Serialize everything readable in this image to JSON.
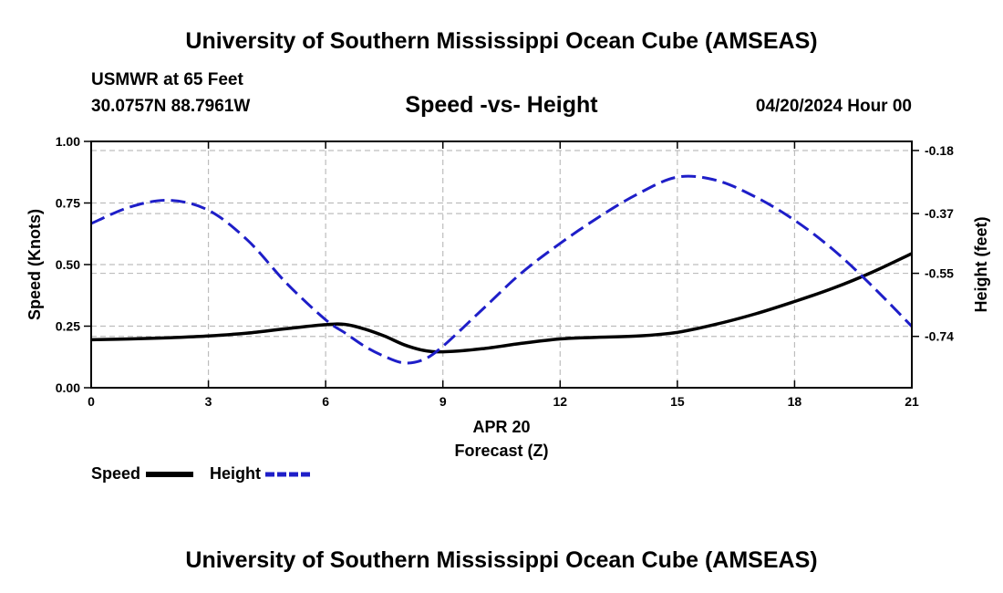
{
  "header": {
    "title": "University of Southern Mississippi Ocean Cube (AMSEAS)",
    "station": "USMWR at 65 Feet",
    "coords": "30.0757N  88.7961W",
    "subtitle": "Speed -vs- Height",
    "datetime": "04/20/2024 Hour 00"
  },
  "footer": {
    "title": "University of Southern Mississippi Ocean Cube (AMSEAS)"
  },
  "chart_data": {
    "type": "line",
    "title": "Speed -vs- Height",
    "xlabel": "Forecast (Z)",
    "xsublabel": "APR 20",
    "ylabel": "Speed (Knots)",
    "y2label": "Height (feet)",
    "xlim": [
      0,
      21
    ],
    "ylim": [
      0,
      1
    ],
    "y2lim": [
      -0.8947,
      -0.1526
    ],
    "xticks": [
      "0",
      "3",
      "6",
      "9",
      "12",
      "15",
      "18",
      "21"
    ],
    "xtick_values": [
      0,
      3,
      6,
      9,
      12,
      15,
      18,
      21
    ],
    "yticks": [
      "0.00",
      "0.25",
      "0.50",
      "0.75",
      "1.00"
    ],
    "ytick_values": [
      0,
      0.25,
      0.5,
      0.75,
      1.0
    ],
    "y2ticks": [
      "-0.18",
      "-0.37",
      "-0.55",
      "-0.74"
    ],
    "y2tick_values": [
      -0.18,
      -0.37,
      -0.55,
      -0.74
    ],
    "grid": true,
    "x": [
      0,
      1,
      2,
      3,
      4,
      5,
      6,
      6.5,
      7,
      7.5,
      8,
      8.5,
      9,
      10,
      11,
      12,
      13,
      14,
      15,
      16,
      17,
      18,
      19,
      20,
      21
    ],
    "series": [
      {
        "name": "Speed",
        "axis": "left",
        "color": "#000000",
        "style": "solid",
        "values": [
          0.195,
          0.198,
          0.203,
          0.21,
          0.222,
          0.24,
          0.256,
          0.257,
          0.238,
          0.21,
          0.175,
          0.152,
          0.146,
          0.158,
          0.18,
          0.198,
          0.205,
          0.21,
          0.225,
          0.258,
          0.3,
          0.35,
          0.405,
          0.47,
          0.545
        ]
      },
      {
        "name": "Height",
        "axis": "right",
        "color": "#1e1ec8",
        "style": "dashed",
        "values": [
          -0.4,
          -0.35,
          -0.33,
          -0.36,
          -0.45,
          -0.58,
          -0.69,
          -0.73,
          -0.77,
          -0.8,
          -0.82,
          -0.81,
          -0.77,
          -0.66,
          -0.55,
          -0.46,
          -0.38,
          -0.31,
          -0.26,
          -0.27,
          -0.32,
          -0.39,
          -0.48,
          -0.59,
          -0.71
        ]
      }
    ],
    "legend": [
      {
        "label": "Speed",
        "color": "#000000",
        "style": "solid"
      },
      {
        "label": "Height",
        "color": "#1e1ec8",
        "style": "dashed"
      }
    ],
    "legend_position": "bottom-left"
  }
}
